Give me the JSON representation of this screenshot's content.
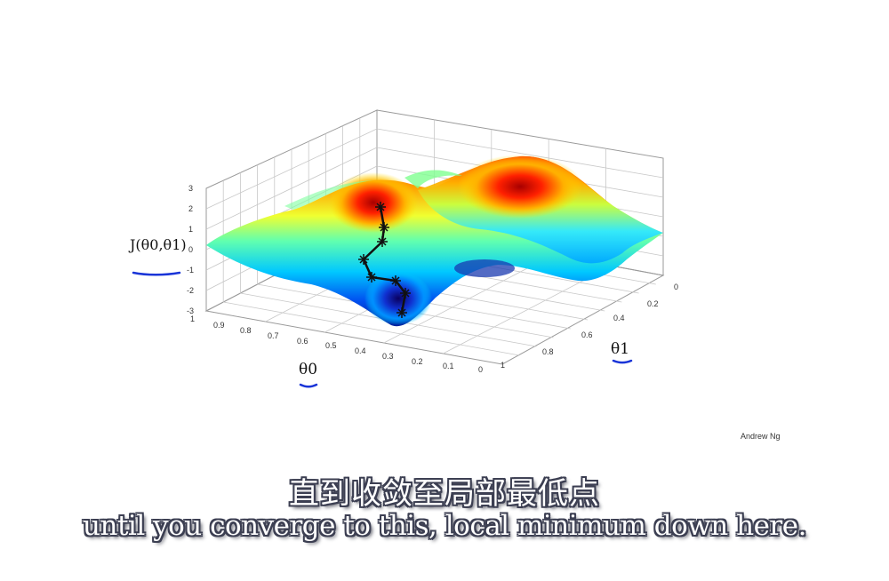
{
  "chart_data": {
    "type": "surface3d",
    "zlabel": "J(θ0,θ1)",
    "xlabel": "θ0",
    "ylabel": "θ1",
    "xlim": [
      0,
      1
    ],
    "ylim": [
      0,
      1
    ],
    "zlim": [
      -3,
      3
    ],
    "x_ticks": [
      "1",
      "0.9",
      "0.8",
      "0.7",
      "0.6",
      "0.5",
      "0.4",
      "0.3",
      "0.2",
      "0.1",
      "0"
    ],
    "y_ticks": [
      "0",
      "0.2",
      "0.4",
      "0.6",
      "0.8",
      "1"
    ],
    "z_ticks": [
      "3",
      "2",
      "1",
      "0",
      "-1",
      "-2",
      "-3"
    ],
    "colormap": [
      "#00008c",
      "#0060ff",
      "#00e4ff",
      "#7fff70",
      "#ffe000",
      "#ff3000",
      "#8c0000"
    ],
    "descent_path_color": "#111111"
  },
  "credit": "Andrew Ng",
  "subtitle_cn": "直到收敛至局部最低点",
  "subtitle_en": "until you converge to this, local minimum down here."
}
